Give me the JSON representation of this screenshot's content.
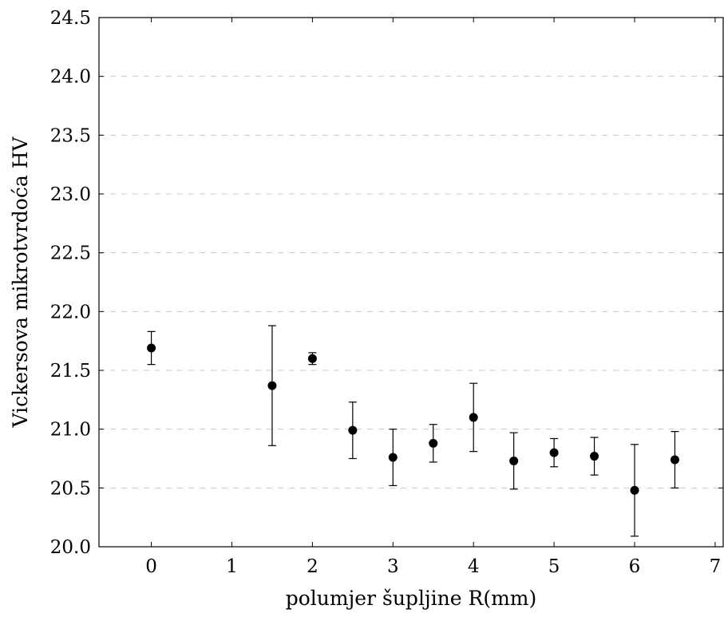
{
  "chart_data": {
    "type": "scatter",
    "title": "",
    "xlabel": "polumjer šupljine R(mm)",
    "ylabel": "Vickersova mikrotvrdoća HV",
    "xlim": [
      -0.65,
      7.1
    ],
    "ylim": [
      20.0,
      24.5
    ],
    "xticks": [
      0,
      1,
      2,
      3,
      4,
      5,
      6,
      7
    ],
    "yticks": [
      20.0,
      20.5,
      21.0,
      21.5,
      22.0,
      22.5,
      23.0,
      23.5,
      24.0,
      24.5
    ],
    "ytick_labels": [
      "20.0",
      "20.5",
      "21.0",
      "21.5",
      "22.0",
      "22.5",
      "23.0",
      "23.5",
      "24.0",
      "24.5"
    ],
    "grid": "horizontal dashed",
    "marker_color": "#000000",
    "points": [
      {
        "x": 0,
        "y": 21.69,
        "ylow": 21.55,
        "yhigh": 21.83
      },
      {
        "x": 1.5,
        "y": 21.37,
        "ylow": 20.86,
        "yhigh": 21.88
      },
      {
        "x": 2,
        "y": 21.6,
        "ylow": 21.55,
        "yhigh": 21.65
      },
      {
        "x": 2.5,
        "y": 20.99,
        "ylow": 20.75,
        "yhigh": 21.23
      },
      {
        "x": 3,
        "y": 20.76,
        "ylow": 20.52,
        "yhigh": 21.0
      },
      {
        "x": 3.5,
        "y": 20.88,
        "ylow": 20.72,
        "yhigh": 21.04
      },
      {
        "x": 4,
        "y": 21.1,
        "ylow": 20.81,
        "yhigh": 21.39
      },
      {
        "x": 4.5,
        "y": 20.73,
        "ylow": 20.49,
        "yhigh": 20.97
      },
      {
        "x": 5,
        "y": 20.8,
        "ylow": 20.68,
        "yhigh": 20.92
      },
      {
        "x": 5.5,
        "y": 20.77,
        "ylow": 20.61,
        "yhigh": 20.93
      },
      {
        "x": 6,
        "y": 20.48,
        "ylow": 20.09,
        "yhigh": 20.87
      },
      {
        "x": 6.5,
        "y": 20.74,
        "ylow": 20.5,
        "yhigh": 20.98
      }
    ]
  }
}
